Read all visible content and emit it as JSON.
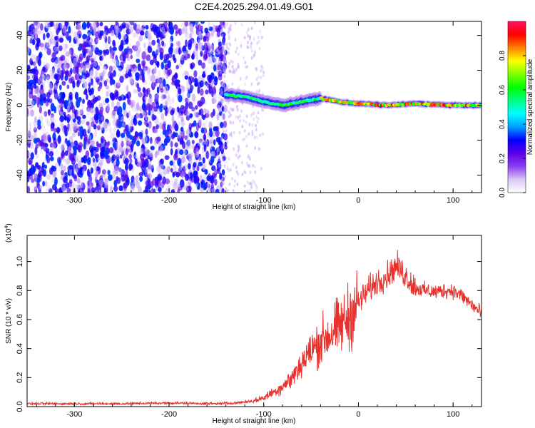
{
  "title": "C2E4.2025.294.01.49.G01",
  "chart_data": [
    {
      "type": "heatmap",
      "xlabel": "Height of straight line (km)",
      "ylabel": "Frequency (Hz)",
      "xlim": [
        -350,
        130
      ],
      "ylim": [
        -50,
        48
      ],
      "xticks": [
        -300,
        -200,
        -100,
        0,
        100
      ],
      "yticks": [
        -40,
        -20,
        0,
        20,
        40
      ],
      "colorbar": {
        "label": "Normalized spectral amplitude",
        "range": [
          0,
          1
        ],
        "ticks": [
          0.0,
          0.2,
          0.4,
          0.6,
          0.8
        ],
        "tick_labels": [
          "0.0",
          "0.2",
          "0.4",
          "0.6",
          "0.8"
        ],
        "colors": [
          "#ffffff",
          "#d9c7f5",
          "#8a3df0",
          "#5a00e8",
          "#0000ff",
          "#00a0ff",
          "#00ffff",
          "#00ff80",
          "#00ff00",
          "#80ff00",
          "#ffff00",
          "#ff8000",
          "#ff0000",
          "#ff1060"
        ]
      },
      "description_points": {
        "noise_region_x": [
          -350,
          -140
        ],
        "signal_trace": [
          {
            "x": -140,
            "y": 6
          },
          {
            "x": -120,
            "y": 5
          },
          {
            "x": -100,
            "y": 2
          },
          {
            "x": -80,
            "y": 0
          },
          {
            "x": -60,
            "y": 2
          },
          {
            "x": -40,
            "y": 4
          },
          {
            "x": -20,
            "y": 2
          },
          {
            "x": 0,
            "y": 1
          },
          {
            "x": 30,
            "y": 0
          },
          {
            "x": 60,
            "y": 1
          },
          {
            "x": 100,
            "y": 0
          },
          {
            "x": 130,
            "y": 0
          }
        ]
      }
    },
    {
      "type": "line",
      "xlabel": "Height of straight line (km)",
      "ylabel": "SNR (10 * v/v)",
      "yunit": "(x10",
      "yunit_exp": "4",
      "yunit_close": ")",
      "xlim": [
        -350,
        130
      ],
      "ylim": [
        0,
        1.18
      ],
      "xticks": [
        -300,
        -200,
        -100,
        0,
        100
      ],
      "yticks": [
        0.0,
        0.2,
        0.4,
        0.6,
        0.8,
        1.0
      ],
      "ytick_labels": [
        "0.0",
        "0.2",
        "0.4",
        "0.6",
        "0.8",
        "1.0"
      ],
      "series": [
        {
          "name": "SNR",
          "color": "#e8302c",
          "x": [
            -350,
            -300,
            -250,
            -200,
            -150,
            -130,
            -110,
            -100,
            -90,
            -80,
            -70,
            -60,
            -50,
            -40,
            -30,
            -20,
            -10,
            0,
            10,
            20,
            30,
            40,
            50,
            60,
            70,
            80,
            90,
            100,
            110,
            120,
            130
          ],
          "y": [
            0.02,
            0.02,
            0.02,
            0.025,
            0.02,
            0.025,
            0.04,
            0.06,
            0.1,
            0.14,
            0.2,
            0.3,
            0.38,
            0.45,
            0.5,
            0.55,
            0.62,
            0.72,
            0.8,
            0.86,
            0.9,
            0.97,
            0.9,
            0.82,
            0.8,
            0.79,
            0.8,
            0.8,
            0.76,
            0.7,
            0.64
          ]
        }
      ]
    }
  ]
}
